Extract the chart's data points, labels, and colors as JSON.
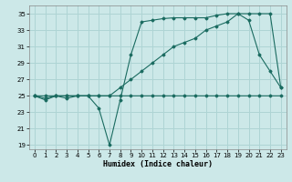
{
  "title": "",
  "xlabel": "Humidex (Indice chaleur)",
  "ylabel": "",
  "bg_color": "#cce8e8",
  "grid_color": "#aed4d4",
  "line_color": "#1a6b60",
  "xlim": [
    -0.5,
    23.5
  ],
  "ylim": [
    18.5,
    36
  ],
  "xticks": [
    0,
    1,
    2,
    3,
    4,
    5,
    6,
    7,
    8,
    9,
    10,
    11,
    12,
    13,
    14,
    15,
    16,
    17,
    18,
    19,
    20,
    21,
    22,
    23
  ],
  "yticks": [
    19,
    21,
    23,
    25,
    27,
    29,
    31,
    33,
    35
  ],
  "curve_min_x": [
    0,
    1,
    2,
    3,
    4,
    5,
    6,
    7,
    8,
    9,
    10,
    11,
    12,
    13,
    14,
    15,
    16,
    17,
    18,
    19,
    20,
    21,
    22,
    23
  ],
  "curve_min_y": [
    25,
    24.7,
    25,
    25,
    25,
    25,
    25,
    25,
    25,
    25,
    25,
    25,
    25,
    25,
    25,
    25,
    25,
    25,
    25,
    25,
    25,
    25,
    25,
    25
  ],
  "curve_mid_x": [
    0,
    1,
    2,
    3,
    4,
    5,
    6,
    7,
    8,
    9,
    10,
    11,
    12,
    13,
    14,
    15,
    16,
    17,
    18,
    19,
    20,
    21,
    22,
    23
  ],
  "curve_mid_y": [
    25,
    25,
    25,
    25,
    25,
    25,
    25,
    25,
    26,
    27,
    28,
    29,
    30,
    31,
    31.5,
    32,
    33,
    33.5,
    34,
    35,
    34.2,
    30,
    28,
    26
  ],
  "curve_top_x": [
    0,
    1,
    2,
    3,
    4,
    5,
    6,
    7,
    8,
    9,
    10,
    11,
    12,
    13,
    14,
    15,
    16,
    17,
    18,
    19,
    20,
    21,
    22,
    23
  ],
  "curve_top_y": [
    25,
    24.5,
    25,
    24.7,
    25,
    25,
    23.5,
    19,
    24.5,
    30,
    34,
    34.2,
    34.4,
    34.5,
    34.5,
    34.5,
    34.5,
    34.8,
    35,
    35,
    35,
    35,
    35,
    26
  ],
  "xlabel_fontsize": 6,
  "tick_fontsize": 5
}
